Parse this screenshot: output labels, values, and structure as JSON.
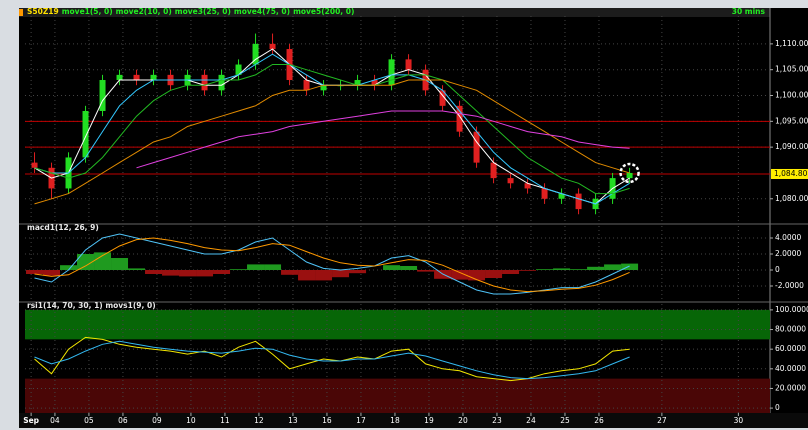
{
  "chart_data": [
    {
      "type": "candlestick",
      "title": "S50Z19",
      "interval": "30 mins",
      "x": [
        0.4,
        0.9,
        1.4,
        1.9,
        2.4,
        2.9,
        3.4,
        3.9,
        4.4,
        4.9,
        5.4,
        5.9,
        6.4,
        6.9,
        7.4,
        7.9,
        8.4,
        8.9,
        9.4,
        9.9,
        10.4,
        10.9,
        11.4,
        11.9,
        12.4,
        12.9,
        13.4,
        13.9,
        14.4,
        14.9,
        15.4,
        15.9,
        16.4,
        16.9,
        17.4,
        17.9
      ],
      "open": [
        1087,
        1086,
        1082,
        1088,
        1097,
        1103,
        1104,
        1103,
        1104,
        1102,
        1104,
        1101,
        1104,
        1106,
        1110,
        1109,
        1103,
        1101,
        1102,
        1102,
        1103,
        1102,
        1107,
        1105,
        1101,
        1098,
        1093,
        1087,
        1084,
        1083,
        1082,
        1080,
        1081,
        1078,
        1080,
        1084
      ],
      "high": [
        1089,
        1087,
        1089,
        1098,
        1104,
        1105,
        1105,
        1105,
        1105,
        1105,
        1105,
        1105,
        1107,
        1112,
        1112,
        1110,
        1104,
        1103,
        1103,
        1104,
        1104,
        1108,
        1108,
        1106,
        1102,
        1099,
        1094,
        1088,
        1085,
        1084,
        1083,
        1082,
        1082,
        1081,
        1085,
        1086
      ],
      "low": [
        1085,
        1080,
        1081,
        1087,
        1096,
        1102,
        1102,
        1102,
        1101,
        1101,
        1100,
        1100,
        1103,
        1105,
        1108,
        1102,
        1100,
        1100,
        1101,
        1101,
        1101,
        1101,
        1104,
        1100,
        1097,
        1092,
        1086,
        1083,
        1082,
        1081,
        1079,
        1079,
        1077,
        1077,
        1079,
        1083
      ],
      "close": [
        1086,
        1082,
        1088,
        1097,
        1103,
        1104,
        1103,
        1104,
        1102,
        1104,
        1101,
        1104,
        1106,
        1110,
        1109,
        1103,
        1101,
        1102,
        1102,
        1103,
        1102,
        1107,
        1105,
        1101,
        1098,
        1093,
        1087,
        1084,
        1083,
        1082,
        1080,
        1081,
        1078,
        1080,
        1084,
        1085
      ],
      "up_color": "#22dd22",
      "down_color": "#e02020",
      "series": [
        {
          "name": "move1(5, 0)",
          "color": "#ffffff",
          "values": [
            1086,
            1084,
            1085,
            1092,
            1099,
            1103,
            1103,
            1103,
            1103,
            1103,
            1102,
            1102,
            1104,
            1107,
            1109,
            1106,
            1103,
            1102,
            1102,
            1102,
            1102,
            1104,
            1105,
            1104,
            1100,
            1096,
            1091,
            1087,
            1085,
            1083,
            1082,
            1081,
            1080,
            1079,
            1082,
            1084
          ]
        },
        {
          "name": "move2(10, 0)",
          "color": "#33c8ff",
          "values": [
            1086,
            1085,
            1085,
            1088,
            1093,
            1098,
            1101,
            1103,
            1103,
            1103,
            1103,
            1103,
            1104,
            1106,
            1108,
            1106,
            1104,
            1102,
            1102,
            1102,
            1103,
            1104,
            1104,
            1103,
            1101,
            1097,
            1093,
            1089,
            1086,
            1084,
            1082,
            1081,
            1080,
            1079,
            1081,
            1083
          ]
        },
        {
          "name": "move3(25, 0)",
          "color": "#22b822",
          "values": [
            1086,
            1085,
            1084,
            1085,
            1088,
            1092,
            1096,
            1099,
            1101,
            1102,
            1102,
            1103,
            1103,
            1104,
            1106,
            1106,
            1105,
            1104,
            1103,
            1102,
            1102,
            1103,
            1104,
            1104,
            1103,
            1100,
            1097,
            1094,
            1091,
            1088,
            1086,
            1084,
            1083,
            1081,
            1081,
            1082
          ]
        },
        {
          "name": "move4(75, 0)",
          "color": "#e08a00",
          "values": [
            1079,
            1080,
            1081,
            1083,
            1085,
            1087,
            1089,
            1091,
            1092,
            1094,
            1095,
            1096,
            1097,
            1098,
            1100,
            1101,
            1101,
            1102,
            1102,
            1102,
            1102,
            1102,
            1103,
            1103,
            1103,
            1102,
            1101,
            1099,
            1097,
            1095,
            1093,
            1091,
            1089,
            1087,
            1086,
            1085
          ]
        },
        {
          "name": "move5(200, 0)",
          "color": "#e040e0",
          "values": [
            null,
            null,
            null,
            null,
            null,
            null,
            1086,
            1087,
            1088,
            1089,
            1090,
            1091,
            1092,
            1092.5,
            1093,
            1094,
            1094.5,
            1095,
            1095.5,
            1096,
            1096.5,
            1097,
            1097,
            1097,
            1097,
            1096.5,
            1096,
            1095,
            1094,
            1093,
            1092.5,
            1092,
            1091,
            1090.5,
            1090,
            1089.8
          ]
        }
      ],
      "hlines": [
        1095,
        1090,
        1084.8
      ],
      "hline_color": "#c00000",
      "price_marker": {
        "value": 1084.8,
        "label": "1,084.80"
      },
      "ylim": [
        1075.5,
        1115.4
      ],
      "yticks": [
        {
          "value": 1080,
          "label": "1,080.00"
        },
        {
          "value": 1090,
          "label": "1,090.00"
        },
        {
          "value": 1095,
          "label": "1,095.00"
        },
        {
          "value": 1100,
          "label": "1,100.00"
        },
        {
          "value": 1105,
          "label": "1,105.00"
        },
        {
          "value": 1110,
          "label": "1,110.00"
        }
      ],
      "xlim": [
        0.12,
        22.03
      ],
      "xticks": [
        {
          "value": 0.3,
          "label": "Sep"
        },
        {
          "value": 1,
          "label": "04"
        },
        {
          "value": 2,
          "label": "05"
        },
        {
          "value": 3,
          "label": "06"
        },
        {
          "value": 4,
          "label": "09"
        },
        {
          "value": 5,
          "label": "10"
        },
        {
          "value": 6,
          "label": "11"
        },
        {
          "value": 7,
          "label": "12"
        },
        {
          "value": 8,
          "label": "13"
        },
        {
          "value": 9,
          "label": "16"
        },
        {
          "value": 10,
          "label": "17"
        },
        {
          "value": 11,
          "label": "18"
        },
        {
          "value": 12,
          "label": "19"
        },
        {
          "value": 13,
          "label": "20"
        },
        {
          "value": 14,
          "label": "23"
        },
        {
          "value": 15,
          "label": "24"
        },
        {
          "value": 16,
          "label": "25"
        },
        {
          "value": 17,
          "label": "26"
        },
        {
          "value": 18.85,
          "label": "27"
        },
        {
          "value": 21.1,
          "label": "30"
        }
      ],
      "grid": true
    },
    {
      "type": "macd",
      "title": "macd1(12, 26, 9)",
      "histogram": {
        "positive_color": "#1f9a1f",
        "negative_color": "#9a1010",
        "values": [
          -0.5,
          -0.7,
          0.6,
          2,
          2.2,
          1.5,
          0.2,
          -0.5,
          -0.7,
          -0.8,
          -0.8,
          -0.5,
          0.1,
          0.7,
          0.7,
          -0.6,
          -1.3,
          -1.3,
          -0.9,
          -0.4,
          0,
          0.6,
          0.5,
          -0.2,
          -1.1,
          -1.2,
          -1.3,
          -1,
          -0.5,
          -0.1,
          0.1,
          0.2,
          0.1,
          0.4,
          0.7,
          0.8
        ]
      },
      "series": [
        {
          "color": "#4fc3f7",
          "values": [
            -1,
            -1.5,
            0,
            2.5,
            4,
            4.5,
            4,
            3.5,
            3,
            2.5,
            2,
            2,
            2.5,
            3.5,
            4,
            2.5,
            1,
            0.2,
            0,
            0.2,
            0.5,
            1.5,
            1.8,
            1,
            -0.5,
            -1.5,
            -2.5,
            -3,
            -3,
            -2.8,
            -2.5,
            -2.2,
            -2.2,
            -1.5,
            -0.5,
            0.5
          ]
        },
        {
          "color": "#ff9900",
          "values": [
            -0.5,
            -0.8,
            -0.6,
            0.5,
            1.8,
            3,
            3.8,
            4,
            3.7,
            3.3,
            2.8,
            2.5,
            2.4,
            2.8,
            3.3,
            3.1,
            2.3,
            1.5,
            0.9,
            0.6,
            0.5,
            0.9,
            1.3,
            1.2,
            0.6,
            -0.3,
            -1.2,
            -2,
            -2.5,
            -2.7,
            -2.6,
            -2.4,
            -2.3,
            -1.9,
            -1.2,
            -0.3
          ]
        }
      ],
      "ylim": [
        -3.75,
        5.5
      ],
      "yticks": [
        {
          "value": 4,
          "label": "4.0000"
        },
        {
          "value": 2,
          "label": "2.0000"
        },
        0,
        {
          "value": -2,
          "label": "-2.0000"
        }
      ],
      "grid": true
    },
    {
      "type": "rsi",
      "title": "rsi1(14, 70, 30, 1) movs1(9, 0)",
      "bands": [
        {
          "range": [
            70,
            100
          ],
          "color": "#076607"
        },
        {
          "range": [
            -5,
            30
          ],
          "color": "#4a0606"
        }
      ],
      "series": [
        {
          "color": "#f2e600",
          "values": [
            50,
            35,
            60,
            72,
            70,
            65,
            62,
            60,
            58,
            55,
            58,
            52,
            62,
            68,
            55,
            40,
            45,
            50,
            48,
            52,
            50,
            58,
            60,
            45,
            40,
            38,
            32,
            30,
            28,
            30,
            35,
            38,
            40,
            45,
            58,
            60
          ]
        },
        {
          "color": "#33b8f0",
          "values": [
            52,
            45,
            50,
            58,
            65,
            68,
            65,
            62,
            60,
            58,
            57,
            56,
            58,
            61,
            60,
            54,
            50,
            48,
            48,
            50,
            50,
            53,
            56,
            53,
            48,
            43,
            38,
            34,
            31,
            30,
            31,
            33,
            35,
            38,
            45,
            52
          ]
        }
      ],
      "ylim": [
        -5,
        106
      ],
      "yticks": [
        {
          "value": 100,
          "label": "100.0000"
        },
        {
          "value": 80,
          "label": "80.0000"
        },
        {
          "value": 60,
          "label": "60.0000"
        },
        {
          "value": 40,
          "label": "40.0000"
        },
        {
          "value": 20,
          "label": "20.0000"
        },
        0
      ],
      "grid": true
    }
  ]
}
